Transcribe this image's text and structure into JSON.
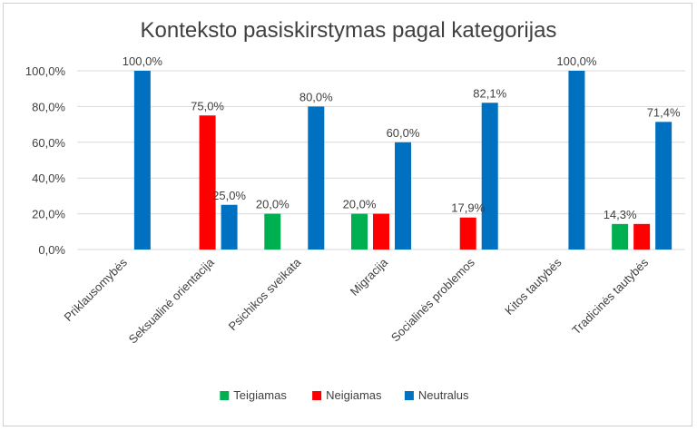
{
  "chart_data": {
    "type": "bar",
    "title": "Konteksto pasiskirstymas pagal kategorijas",
    "categories": [
      "Priklausomybės",
      "Seksualinė orientacija",
      "Psichikos sveikata",
      "Migracija",
      "Socialinės problemos",
      "Kitos tautybės",
      "Tradicinės tautybės"
    ],
    "series": [
      {
        "name": "Teigiamas",
        "color": "#00b050",
        "values": [
          0,
          0,
          20.0,
          20.0,
          0,
          0,
          14.3
        ]
      },
      {
        "name": "Neigiamas",
        "color": "#ff0000",
        "values": [
          0,
          75.0,
          0,
          20.0,
          17.9,
          0,
          14.3
        ]
      },
      {
        "name": "Neutralus",
        "color": "#0070c0",
        "values": [
          100.0,
          25.0,
          80.0,
          60.0,
          82.1,
          100.0,
          71.4
        ]
      }
    ],
    "data_labels": [
      {
        "series": "Neutralus",
        "category": "Priklausomybės",
        "text": "100,0%"
      },
      {
        "series": "Neigiamas",
        "category": "Seksualinė orientacija",
        "text": "75,0%"
      },
      {
        "series": "Neutralus",
        "category": "Seksualinė orientacija",
        "text": "25,0%"
      },
      {
        "series": "Teigiamas",
        "category": "Psichikos sveikata",
        "text": "20,0%"
      },
      {
        "series": "Neutralus",
        "category": "Psichikos sveikata",
        "text": "80,0%"
      },
      {
        "series": "Teigiamas",
        "category": "Migracija",
        "text": "20,0%"
      },
      {
        "series": "Neutralus",
        "category": "Migracija",
        "text": "60,0%"
      },
      {
        "series": "Neigiamas",
        "category": "Socialinės problemos",
        "text": "17,9%"
      },
      {
        "series": "Neutralus",
        "category": "Socialinės problemos",
        "text": "82,1%"
      },
      {
        "series": "Neutralus",
        "category": "Kitos tautybės",
        "text": "100,0%"
      },
      {
        "series": "Teigiamas",
        "category": "Tradicinės tautybės",
        "text": "14,3%"
      },
      {
        "series": "Neutralus",
        "category": "Tradicinės tautybės",
        "text": "71,4%"
      }
    ],
    "yticks": [
      "0,0%",
      "20,0%",
      "40,0%",
      "60,0%",
      "80,0%",
      "100,0%"
    ],
    "ylim": [
      0,
      100
    ],
    "xlabel": "",
    "ylabel": "",
    "grid": true,
    "legend": "bottom"
  }
}
